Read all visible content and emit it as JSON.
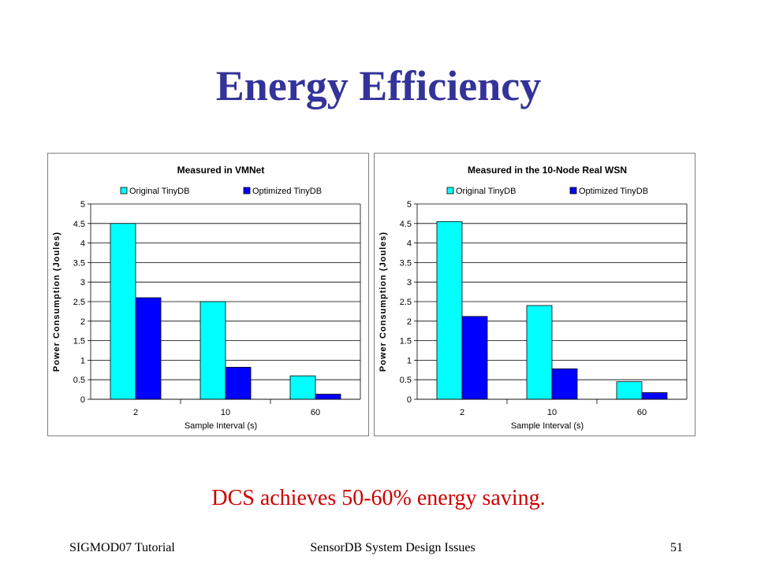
{
  "slide": {
    "title": "Energy Efficiency",
    "caption": "DCS achieves 50-60% energy saving.",
    "footer_left": "SIGMOD07 Tutorial",
    "footer_center": "SensorDB System Design Issues",
    "footer_right": "51"
  },
  "colors": {
    "title": "#333399",
    "caption": "#cc0000",
    "original_series": "#00ffff",
    "optimized_series": "#0000ff"
  },
  "chart_data": [
    {
      "type": "bar",
      "title": "Measured in VMNet",
      "xlabel": "Sample Interval (s)",
      "ylabel": "Power Consumption (Joules)",
      "categories": [
        "2",
        "10",
        "60"
      ],
      "series": [
        {
          "name": "Original TinyDB",
          "values": [
            4.5,
            2.5,
            0.6
          ]
        },
        {
          "name": "Optimized TinyDB",
          "values": [
            2.6,
            0.82,
            0.13
          ]
        }
      ],
      "ylim": [
        0,
        5
      ],
      "yticks": [
        "0",
        "0.5",
        "1",
        "1.5",
        "2",
        "2.5",
        "3",
        "3.5",
        "4",
        "4.5",
        "5"
      ],
      "grid": true,
      "legend": "top"
    },
    {
      "type": "bar",
      "title": "Measured in the 10-Node Real WSN",
      "xlabel": "Sample Interval (s)",
      "ylabel": "Power Consumption (Joules)",
      "categories": [
        "2",
        "10",
        "60"
      ],
      "series": [
        {
          "name": "Original TinyDB",
          "values": [
            4.55,
            2.4,
            0.45
          ]
        },
        {
          "name": "Optimized TinyDB",
          "values": [
            2.12,
            0.78,
            0.17
          ]
        }
      ],
      "ylim": [
        0,
        5
      ],
      "yticks": [
        "0",
        "0.5",
        "1",
        "1.5",
        "2",
        "2.5",
        "3",
        "3.5",
        "4",
        "4.5",
        "5"
      ],
      "grid": true,
      "legend": "top"
    }
  ]
}
